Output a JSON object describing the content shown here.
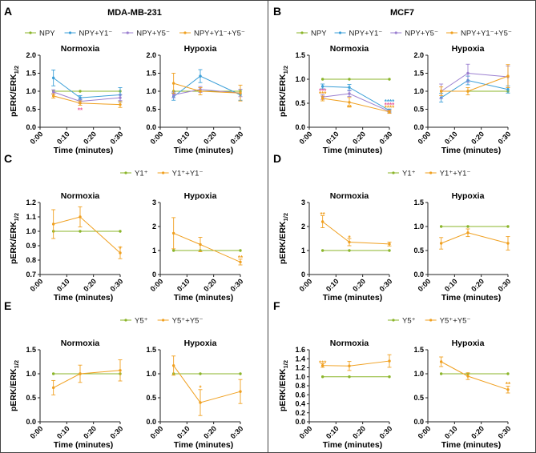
{
  "figure": {
    "panel_letters": [
      "A",
      "B",
      "C",
      "D",
      "E",
      "F"
    ],
    "cell_lines": {
      "left": "MDA-MB-231",
      "right": "MCF7"
    }
  },
  "colors": {
    "green": "#8bb52a",
    "blue": "#3b9fd8",
    "purple": "#9b7fd0",
    "orange": "#f0a020",
    "sig_pink": "#e85a9a",
    "sig_blue": "#3b9fd8",
    "sig_orange": "#f0a020"
  },
  "chart_data": [
    {
      "id": "A-normoxia",
      "type": "line",
      "title": "Normoxia",
      "xlabel": "Time (minutes)",
      "ylabel": "pERK/ERK1/2",
      "x_ticks": [
        "0:00",
        "0:10",
        "0:20",
        "0:30"
      ],
      "y_ticks": [
        "0.0",
        "0.5",
        "1.0",
        "1.5",
        "2.0"
      ],
      "xlim": [
        0,
        30
      ],
      "ylim": [
        0,
        2
      ],
      "legend": [
        "NPY",
        "NPY+Y1⁻",
        "NPY+Y5⁻",
        "NPY+Y1⁻+Y5⁻"
      ],
      "series": [
        {
          "name": "NPY",
          "color": "green",
          "x": [
            5,
            15,
            30
          ],
          "y": [
            1.0,
            1.0,
            1.0
          ],
          "err": [
            0,
            0,
            0
          ]
        },
        {
          "name": "NPY+Y1⁻",
          "color": "blue",
          "x": [
            5,
            15,
            30
          ],
          "y": [
            1.37,
            0.82,
            0.9
          ],
          "err": [
            0.22,
            0.06,
            0.2
          ]
        },
        {
          "name": "NPY+Y5⁻",
          "color": "purple",
          "x": [
            5,
            15,
            30
          ],
          "y": [
            0.98,
            0.72,
            0.82
          ],
          "err": [
            0.06,
            0.06,
            0.08
          ]
        },
        {
          "name": "NPY+Y1⁻+Y5⁻",
          "color": "orange",
          "x": [
            5,
            15,
            30
          ],
          "y": [
            0.87,
            0.67,
            0.63
          ],
          "err": [
            0.06,
            0.06,
            0.08
          ]
        }
      ],
      "annotations": [
        {
          "x": 15,
          "y": 0.48,
          "text": "**",
          "color": "sig_pink"
        }
      ]
    },
    {
      "id": "A-hypoxia",
      "type": "line",
      "title": "Hypoxia",
      "xlabel": "Time (minutes)",
      "ylabel": "",
      "x_ticks": [
        "0:00",
        "0:10",
        "0:20",
        "0:30"
      ],
      "y_ticks": [
        "0.0",
        "0.5",
        "1.0",
        "1.5",
        "2.0"
      ],
      "xlim": [
        0,
        30
      ],
      "ylim": [
        0,
        2
      ],
      "series": [
        {
          "name": "NPY",
          "color": "green",
          "x": [
            5,
            15,
            30
          ],
          "y": [
            1.0,
            1.0,
            1.0
          ],
          "err": [
            0,
            0,
            0
          ]
        },
        {
          "name": "NPY+Y1⁻",
          "color": "blue",
          "x": [
            5,
            15,
            30
          ],
          "y": [
            0.85,
            1.42,
            0.9
          ],
          "err": [
            0.1,
            0.18,
            0.15
          ]
        },
        {
          "name": "NPY+Y5⁻",
          "color": "purple",
          "x": [
            5,
            15,
            30
          ],
          "y": [
            0.9,
            1.05,
            0.95
          ],
          "err": [
            0.08,
            0.08,
            0.1
          ]
        },
        {
          "name": "NPY+Y1⁻+Y5⁻",
          "color": "orange",
          "x": [
            5,
            15,
            30
          ],
          "y": [
            1.22,
            1.0,
            0.95
          ],
          "err": [
            0.28,
            0.1,
            0.22
          ]
        }
      ],
      "annotations": []
    },
    {
      "id": "B-normoxia",
      "type": "line",
      "title": "Normoxia",
      "xlabel": "Time (minutes)",
      "ylabel": "pERK/ERK1/2",
      "x_ticks": [
        "0:00",
        "0:10",
        "0:20",
        "0:30"
      ],
      "y_ticks": [
        "0.0",
        "0.5",
        "1.0",
        "1.5"
      ],
      "xlim": [
        0,
        30
      ],
      "ylim": [
        0,
        1.5
      ],
      "legend": [
        "NPY",
        "NPY+Y1⁻",
        "NPY+Y5⁻",
        "NPY+Y1⁻+Y5⁻"
      ],
      "series": [
        {
          "name": "NPY",
          "color": "green",
          "x": [
            5,
            15,
            30
          ],
          "y": [
            1.0,
            1.0,
            1.0
          ],
          "err": [
            0,
            0,
            0
          ]
        },
        {
          "name": "NPY+Y1⁻",
          "color": "blue",
          "x": [
            5,
            15,
            30
          ],
          "y": [
            0.85,
            0.83,
            0.35
          ],
          "err": [
            0.05,
            0.06,
            0.03
          ]
        },
        {
          "name": "NPY+Y5⁻",
          "color": "purple",
          "x": [
            5,
            15,
            30
          ],
          "y": [
            0.63,
            0.7,
            0.33
          ],
          "err": [
            0.05,
            0.06,
            0.03
          ]
        },
        {
          "name": "NPY+Y1⁻+Y5⁻",
          "color": "orange",
          "x": [
            5,
            15,
            30
          ],
          "y": [
            0.6,
            0.52,
            0.32
          ],
          "err": [
            0.05,
            0.1,
            0.03
          ]
        }
      ],
      "annotations": [
        {
          "x": 5,
          "y": 0.76,
          "text": "***",
          "color": "sig_pink"
        },
        {
          "x": 5,
          "y": 0.7,
          "text": "***",
          "color": "sig_orange"
        },
        {
          "x": 15,
          "y": 0.42,
          "text": "**",
          "color": "sig_orange"
        },
        {
          "x": 30,
          "y": 0.53,
          "text": "****",
          "color": "sig_blue"
        },
        {
          "x": 30,
          "y": 0.47,
          "text": "****",
          "color": "sig_pink"
        },
        {
          "x": 30,
          "y": 0.41,
          "text": "****",
          "color": "sig_orange"
        }
      ]
    },
    {
      "id": "B-hypoxia",
      "type": "line",
      "title": "Hypoxia",
      "xlabel": "Time (minutes)",
      "ylabel": "",
      "x_ticks": [
        "0:00",
        "0:10",
        "0:20",
        "0:30"
      ],
      "y_ticks": [
        "0.0",
        "0.5",
        "1.0",
        "1.5",
        "2.0"
      ],
      "xlim": [
        0,
        30
      ],
      "ylim": [
        0,
        2
      ],
      "series": [
        {
          "name": "NPY",
          "color": "green",
          "x": [
            5,
            15,
            30
          ],
          "y": [
            1.0,
            1.0,
            1.0
          ],
          "err": [
            0,
            0,
            0
          ]
        },
        {
          "name": "NPY+Y1⁻",
          "color": "blue",
          "x": [
            5,
            15,
            30
          ],
          "y": [
            0.82,
            1.3,
            1.05
          ],
          "err": [
            0.12,
            0.12,
            0.1
          ]
        },
        {
          "name": "NPY+Y5⁻",
          "color": "purple",
          "x": [
            5,
            15,
            30
          ],
          "y": [
            1.0,
            1.5,
            1.4
          ],
          "err": [
            0.2,
            0.25,
            0.3
          ]
        },
        {
          "name": "NPY+Y1⁻+Y5⁻",
          "color": "orange",
          "x": [
            5,
            15,
            30
          ],
          "y": [
            1.0,
            1.0,
            1.42
          ],
          "err": [
            0.12,
            0.1,
            0.32
          ]
        }
      ],
      "annotations": []
    },
    {
      "id": "C-normoxia",
      "type": "line",
      "title": "Normoxia",
      "xlabel": "Time (minutes)",
      "ylabel": "pERK/ERK1/2",
      "x_ticks": [
        "0:00",
        "0:10",
        "0:20",
        "0:30"
      ],
      "y_ticks": [
        "0.7",
        "0.8",
        "0.9",
        "1.0",
        "1.1",
        "1.2"
      ],
      "xlim": [
        0,
        30
      ],
      "ylim": [
        0.7,
        1.2
      ],
      "legend": [
        "Y1⁺",
        "Y1⁺+Y1⁻"
      ],
      "series": [
        {
          "name": "Y1⁺",
          "color": "green",
          "x": [
            5,
            15,
            30
          ],
          "y": [
            1.0,
            1.0,
            1.0
          ],
          "err": [
            0,
            0,
            0
          ]
        },
        {
          "name": "Y1⁺+Y1⁻",
          "color": "orange",
          "x": [
            5,
            15,
            30
          ],
          "y": [
            1.05,
            1.1,
            0.85
          ],
          "err": [
            0.1,
            0.07,
            0.04
          ]
        }
      ],
      "annotations": [
        {
          "x": 30,
          "y": 0.88,
          "text": "*",
          "color": "sig_orange"
        }
      ]
    },
    {
      "id": "C-hypoxia",
      "type": "line",
      "title": "Hypoxia",
      "xlabel": "Time (minutes)",
      "ylabel": "",
      "x_ticks": [
        "0:00",
        "0:10",
        "0:20",
        "0:30"
      ],
      "y_ticks": [
        "0",
        "1",
        "2",
        "3"
      ],
      "xlim": [
        0,
        30
      ],
      "ylim": [
        0,
        3
      ],
      "series": [
        {
          "name": "Y1⁺",
          "color": "green",
          "x": [
            5,
            15,
            30
          ],
          "y": [
            1.0,
            1.0,
            1.0
          ],
          "err": [
            0,
            0,
            0
          ]
        },
        {
          "name": "Y1⁺+Y1⁻",
          "color": "orange",
          "x": [
            5,
            15,
            30
          ],
          "y": [
            1.72,
            1.25,
            0.52
          ],
          "err": [
            0.65,
            0.3,
            0.12
          ]
        }
      ],
      "annotations": [
        {
          "x": 30,
          "y": 0.7,
          "text": "**",
          "color": "sig_orange"
        }
      ]
    },
    {
      "id": "D-normoxia",
      "type": "line",
      "title": "Normoxia",
      "xlabel": "Time (minutes)",
      "ylabel": "pERK/ERK1/2",
      "x_ticks": [
        "0:00",
        "0:10",
        "0:20",
        "0:30"
      ],
      "y_ticks": [
        "0",
        "1",
        "2",
        "3"
      ],
      "xlim": [
        0,
        30
      ],
      "ylim": [
        0,
        3
      ],
      "legend": [
        "Y1⁺",
        "Y1⁺+Y1⁻"
      ],
      "series": [
        {
          "name": "Y1⁺",
          "color": "green",
          "x": [
            5,
            15,
            30
          ],
          "y": [
            1.0,
            1.0,
            1.0
          ],
          "err": [
            0,
            0,
            0
          ]
        },
        {
          "name": "Y1⁺+Y1⁻",
          "color": "orange",
          "x": [
            5,
            15,
            30
          ],
          "y": [
            2.2,
            1.35,
            1.27
          ],
          "err": [
            0.25,
            0.15,
            0.08
          ]
        }
      ],
      "annotations": [
        {
          "x": 5,
          "y": 2.5,
          "text": "**",
          "color": "sig_orange"
        },
        {
          "x": 15,
          "y": 1.53,
          "text": "*",
          "color": "sig_orange"
        }
      ]
    },
    {
      "id": "D-hypoxia",
      "type": "line",
      "title": "Hypoxia",
      "xlabel": "Time (minutes)",
      "ylabel": "",
      "x_ticks": [
        "0:00",
        "0:10",
        "0:20",
        "0:30"
      ],
      "y_ticks": [
        "0.0",
        "0.5",
        "1.0",
        "1.5"
      ],
      "xlim": [
        0,
        30
      ],
      "ylim": [
        0,
        1.5
      ],
      "series": [
        {
          "name": "Y1⁺",
          "color": "green",
          "x": [
            5,
            15,
            30
          ],
          "y": [
            1.0,
            1.0,
            1.0
          ],
          "err": [
            0,
            0,
            0
          ]
        },
        {
          "name": "Y1⁺+Y1⁻",
          "color": "orange",
          "x": [
            5,
            15,
            30
          ],
          "y": [
            0.65,
            0.87,
            0.65
          ],
          "err": [
            0.12,
            0.08,
            0.14
          ]
        }
      ],
      "annotations": []
    },
    {
      "id": "E-normoxia",
      "type": "line",
      "title": "Normoxia",
      "xlabel": "Time (minutes)",
      "ylabel": "pERK/ERK1/2",
      "x_ticks": [
        "0:00",
        "0:10",
        "0:20",
        "0:30"
      ],
      "y_ticks": [
        "0.0",
        "0.5",
        "1.0",
        "1.5"
      ],
      "xlim": [
        0,
        30
      ],
      "ylim": [
        0,
        1.5
      ],
      "legend": [
        "Y5⁺",
        "Y5⁺+Y5⁻"
      ],
      "series": [
        {
          "name": "Y5⁺",
          "color": "green",
          "x": [
            5,
            15,
            30
          ],
          "y": [
            1.0,
            1.0,
            1.0
          ],
          "err": [
            0,
            0,
            0
          ]
        },
        {
          "name": "Y5⁺+Y5⁻",
          "color": "orange",
          "x": [
            5,
            15,
            30
          ],
          "y": [
            0.71,
            1.0,
            1.07
          ],
          "err": [
            0.15,
            0.18,
            0.22
          ]
        }
      ],
      "annotations": []
    },
    {
      "id": "E-hypoxia",
      "type": "line",
      "title": "Hypoxia",
      "xlabel": "Time (minutes)",
      "ylabel": "",
      "x_ticks": [
        "0:00",
        "0:10",
        "0:20",
        "0:30"
      ],
      "y_ticks": [
        "0.0",
        "0.5",
        "1.0",
        "1.5"
      ],
      "xlim": [
        0,
        30
      ],
      "ylim": [
        0,
        1.5
      ],
      "series": [
        {
          "name": "Y5⁺",
          "color": "green",
          "x": [
            5,
            15,
            30
          ],
          "y": [
            1.0,
            1.0,
            1.0
          ],
          "err": [
            0,
            0,
            0
          ]
        },
        {
          "name": "Y5⁺+Y5⁻",
          "color": "orange",
          "x": [
            5,
            15,
            30
          ],
          "y": [
            1.17,
            0.4,
            0.63
          ],
          "err": [
            0.2,
            0.27,
            0.25
          ]
        }
      ],
      "annotations": [
        {
          "x": 15,
          "y": 0.71,
          "text": "*",
          "color": "sig_orange"
        }
      ]
    },
    {
      "id": "F-normoxia",
      "type": "line",
      "title": "Normoxia",
      "xlabel": "Time (minutes)",
      "ylabel": "pERK/ERK1/2",
      "x_ticks": [
        "0:00",
        "0:10",
        "0:20",
        "0:30"
      ],
      "y_ticks": [
        "0.0",
        "0.2",
        "0.4",
        "0.6",
        "0.8",
        "1.0",
        "1.2",
        "1.4",
        "1.6"
      ],
      "xlim": [
        0,
        30
      ],
      "ylim": [
        0,
        1.6
      ],
      "legend": [
        "Y5⁺",
        "Y5⁺+Y5⁻"
      ],
      "series": [
        {
          "name": "Y5⁺",
          "color": "green",
          "x": [
            5,
            15,
            30
          ],
          "y": [
            1.0,
            1.0,
            1.0
          ],
          "err": [
            0,
            0,
            0
          ]
        },
        {
          "name": "Y5⁺+Y5⁻",
          "color": "orange",
          "x": [
            5,
            15,
            30
          ],
          "y": [
            1.25,
            1.24,
            1.35
          ],
          "err": [
            0.04,
            0.1,
            0.14
          ]
        }
      ],
      "annotations": [
        {
          "x": 5,
          "y": 1.31,
          "text": "***",
          "color": "sig_orange"
        }
      ]
    },
    {
      "id": "F-hypoxia",
      "type": "line",
      "title": "Hypoxia",
      "xlabel": "Time (minutes)",
      "ylabel": "",
      "x_ticks": [
        "0:00",
        "0:10",
        "0:20",
        "0:30"
      ],
      "y_ticks": [
        "0.0",
        "0.5",
        "1.0",
        "1.5"
      ],
      "xlim": [
        0,
        30
      ],
      "ylim": [
        0,
        1.5
      ],
      "series": [
        {
          "name": "Y5⁺",
          "color": "green",
          "x": [
            5,
            15,
            30
          ],
          "y": [
            1.0,
            1.0,
            1.0
          ],
          "err": [
            0,
            0,
            0
          ]
        },
        {
          "name": "Y5⁺+Y5⁻",
          "color": "orange",
          "x": [
            5,
            15,
            30
          ],
          "y": [
            1.25,
            0.95,
            0.67
          ],
          "err": [
            0.1,
            0.07,
            0.07
          ]
        }
      ],
      "annotations": [
        {
          "x": 30,
          "y": 0.78,
          "text": "**",
          "color": "sig_orange"
        }
      ]
    }
  ]
}
